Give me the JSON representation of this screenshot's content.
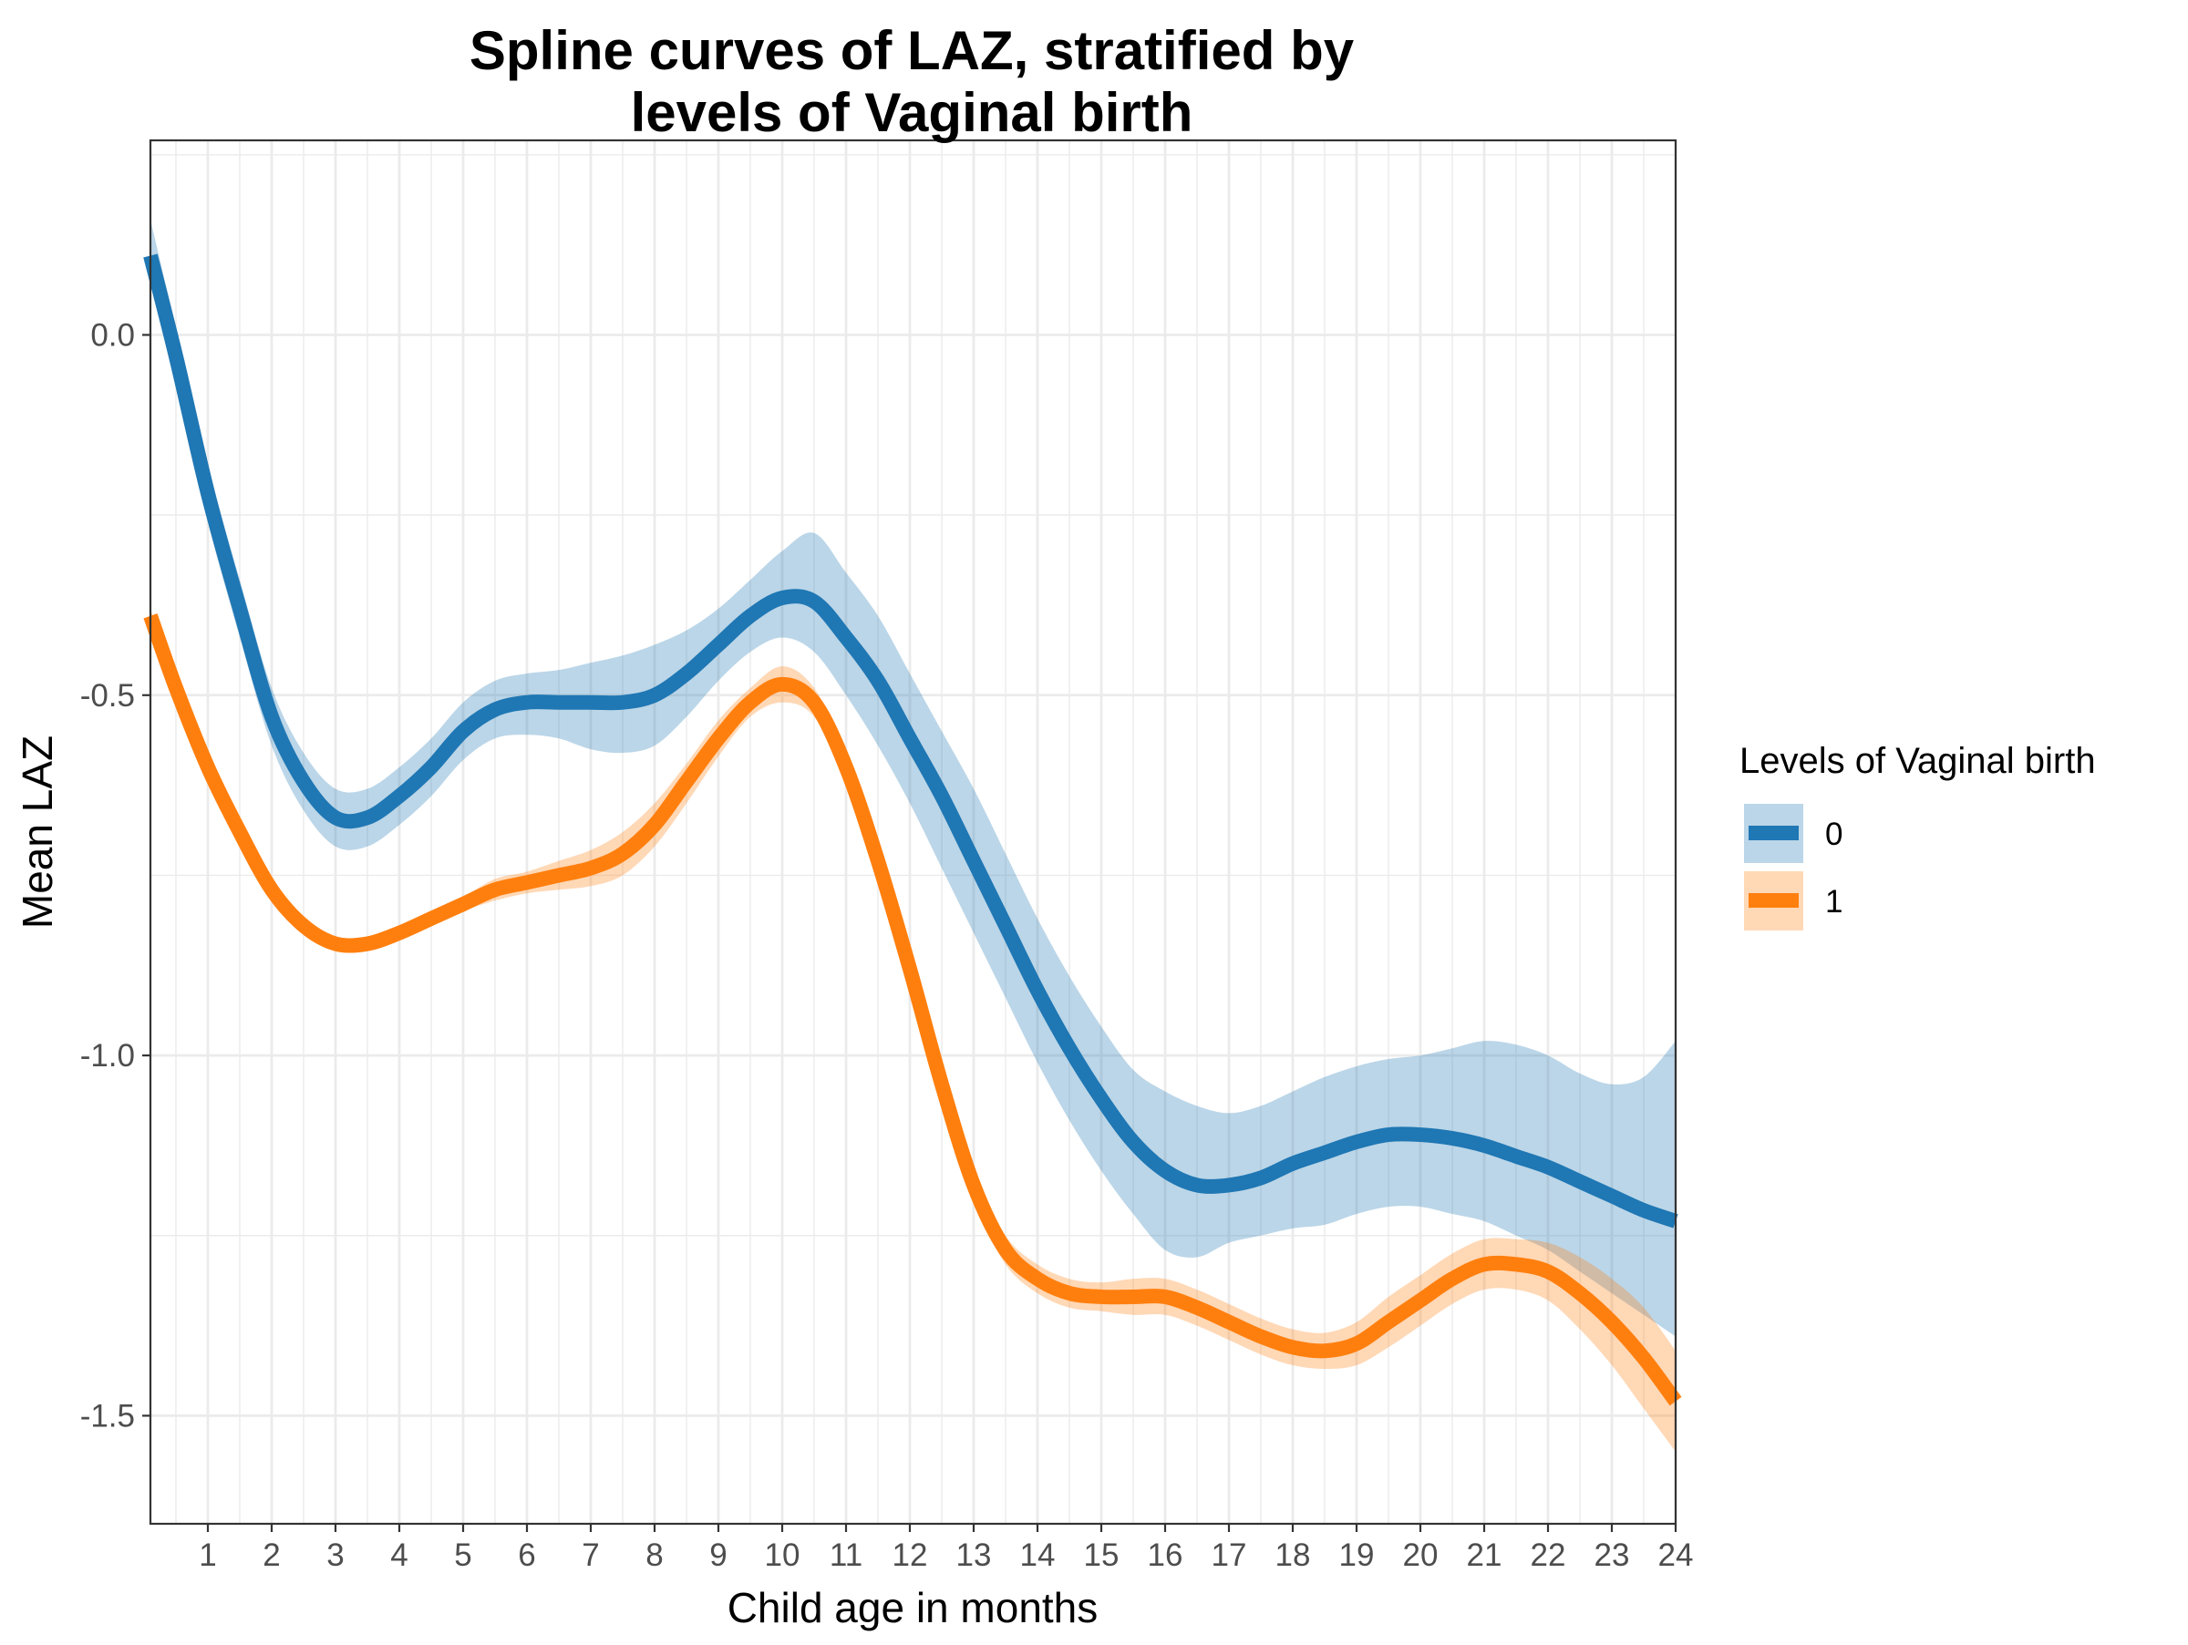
{
  "chart_data": {
    "type": "line",
    "title_lines": [
      "Spline curves of LAZ, stratified by",
      "levels of Vaginal birth"
    ],
    "xlabel": "Child age in months",
    "ylabel": "Mean LAZ",
    "xlim": [
      0.1,
      24
    ],
    "ylim": [
      -1.65,
      0.27
    ],
    "x_ticks": [
      1,
      2,
      3,
      4,
      5,
      6,
      7,
      8,
      9,
      10,
      11,
      12,
      13,
      14,
      15,
      16,
      17,
      18,
      19,
      20,
      21,
      22,
      23,
      24
    ],
    "x_tick_labels": [
      "1",
      "2",
      "3",
      "4",
      "5",
      "6",
      "7",
      "8",
      "9",
      "10",
      "11",
      "12",
      "13",
      "14",
      "15",
      "16",
      "17",
      "18",
      "19",
      "20",
      "21",
      "22",
      "23",
      "24"
    ],
    "y_ticks": [
      0.0,
      -0.5,
      -1.0,
      -1.5
    ],
    "y_tick_labels": [
      "0.0",
      "-0.5",
      "-1.0",
      "-1.5"
    ],
    "grid": true,
    "legend": {
      "title": "Levels of Vaginal birth",
      "position": "right"
    },
    "series": [
      {
        "name": "0",
        "color": "#1f77b4",
        "x": [
          0.1,
          0.5,
          1,
          1.5,
          2,
          2.5,
          3,
          3.5,
          4,
          4.5,
          5,
          5.5,
          6,
          6.5,
          7,
          7.5,
          8,
          8.5,
          9,
          9.5,
          10,
          10.5,
          11,
          11.5,
          12,
          12.5,
          13,
          13.5,
          14,
          14.5,
          15,
          15.5,
          16,
          16.5,
          17,
          17.5,
          18,
          18.5,
          19,
          19.5,
          20,
          20.5,
          21,
          21.5,
          22,
          22.5,
          23,
          23.5,
          24
        ],
        "y": [
          0.11,
          -0.03,
          -0.22,
          -0.38,
          -0.53,
          -0.62,
          -0.67,
          -0.67,
          -0.64,
          -0.6,
          -0.55,
          -0.52,
          -0.51,
          -0.51,
          -0.51,
          -0.51,
          -0.5,
          -0.47,
          -0.43,
          -0.39,
          -0.365,
          -0.37,
          -0.42,
          -0.48,
          -0.56,
          -0.64,
          -0.73,
          -0.82,
          -0.91,
          -0.99,
          -1.06,
          -1.12,
          -1.16,
          -1.18,
          -1.18,
          -1.17,
          -1.15,
          -1.135,
          -1.12,
          -1.11,
          -1.11,
          -1.115,
          -1.125,
          -1.14,
          -1.155,
          -1.175,
          -1.195,
          -1.215,
          -1.23
        ],
        "lower": [
          0.07,
          -0.07,
          -0.26,
          -0.42,
          -0.57,
          -0.66,
          -0.71,
          -0.71,
          -0.68,
          -0.64,
          -0.59,
          -0.56,
          -0.555,
          -0.56,
          -0.575,
          -0.58,
          -0.57,
          -0.53,
          -0.48,
          -0.44,
          -0.42,
          -0.44,
          -0.5,
          -0.57,
          -0.65,
          -0.74,
          -0.83,
          -0.92,
          -1.01,
          -1.09,
          -1.16,
          -1.22,
          -1.27,
          -1.28,
          -1.26,
          -1.25,
          -1.24,
          -1.235,
          -1.22,
          -1.21,
          -1.21,
          -1.22,
          -1.23,
          -1.25,
          -1.27,
          -1.3,
          -1.33,
          -1.36,
          -1.39
        ],
        "upper": [
          0.16,
          0.01,
          -0.18,
          -0.34,
          -0.49,
          -0.58,
          -0.63,
          -0.63,
          -0.6,
          -0.56,
          -0.51,
          -0.48,
          -0.47,
          -0.465,
          -0.455,
          -0.445,
          -0.43,
          -0.41,
          -0.38,
          -0.34,
          -0.3,
          -0.275,
          -0.33,
          -0.39,
          -0.47,
          -0.55,
          -0.63,
          -0.72,
          -0.81,
          -0.89,
          -0.96,
          -1.02,
          -1.05,
          -1.07,
          -1.08,
          -1.07,
          -1.05,
          -1.03,
          -1.015,
          -1.005,
          -1.0,
          -0.99,
          -0.98,
          -0.985,
          -1.0,
          -1.025,
          -1.04,
          -1.03,
          -0.98
        ]
      },
      {
        "name": "1",
        "color": "#ff7f0e",
        "x": [
          0.1,
          0.5,
          1,
          1.5,
          2,
          2.5,
          3,
          3.5,
          4,
          4.5,
          5,
          5.5,
          6,
          6.5,
          7,
          7.5,
          8,
          8.5,
          9,
          9.5,
          10,
          10.5,
          11,
          11.5,
          12,
          12.5,
          13,
          13.5,
          14,
          14.5,
          15,
          15.5,
          16,
          16.5,
          17,
          17.5,
          18,
          18.5,
          19,
          19.5,
          20,
          20.5,
          21,
          21.5,
          22,
          22.5,
          23,
          23.5,
          24
        ],
        "y": [
          -0.39,
          -0.49,
          -0.6,
          -0.69,
          -0.77,
          -0.82,
          -0.845,
          -0.845,
          -0.83,
          -0.81,
          -0.79,
          -0.77,
          -0.76,
          -0.75,
          -0.74,
          -0.72,
          -0.68,
          -0.62,
          -0.56,
          -0.51,
          -0.485,
          -0.51,
          -0.6,
          -0.73,
          -0.88,
          -1.04,
          -1.18,
          -1.27,
          -1.31,
          -1.33,
          -1.335,
          -1.335,
          -1.335,
          -1.35,
          -1.37,
          -1.39,
          -1.405,
          -1.41,
          -1.4,
          -1.37,
          -1.34,
          -1.31,
          -1.29,
          -1.29,
          -1.3,
          -1.33,
          -1.37,
          -1.42,
          -1.48
        ],
        "lower": [
          -0.4,
          -0.5,
          -0.61,
          -0.7,
          -0.78,
          -0.83,
          -0.855,
          -0.855,
          -0.84,
          -0.82,
          -0.8,
          -0.785,
          -0.775,
          -0.77,
          -0.765,
          -0.75,
          -0.71,
          -0.65,
          -0.585,
          -0.53,
          -0.51,
          -0.53,
          -0.62,
          -0.75,
          -0.9,
          -1.06,
          -1.2,
          -1.29,
          -1.33,
          -1.35,
          -1.355,
          -1.36,
          -1.36,
          -1.375,
          -1.395,
          -1.415,
          -1.43,
          -1.435,
          -1.43,
          -1.405,
          -1.375,
          -1.345,
          -1.325,
          -1.325,
          -1.34,
          -1.38,
          -1.43,
          -1.49,
          -1.55
        ],
        "upper": [
          -0.38,
          -0.48,
          -0.59,
          -0.68,
          -0.76,
          -0.81,
          -0.835,
          -0.835,
          -0.82,
          -0.8,
          -0.78,
          -0.755,
          -0.745,
          -0.73,
          -0.715,
          -0.69,
          -0.65,
          -0.595,
          -0.535,
          -0.49,
          -0.46,
          -0.49,
          -0.58,
          -0.71,
          -0.86,
          -1.02,
          -1.16,
          -1.25,
          -1.29,
          -1.31,
          -1.315,
          -1.31,
          -1.31,
          -1.325,
          -1.345,
          -1.365,
          -1.38,
          -1.385,
          -1.37,
          -1.335,
          -1.305,
          -1.275,
          -1.255,
          -1.255,
          -1.26,
          -1.28,
          -1.31,
          -1.35,
          -1.41
        ]
      }
    ]
  }
}
